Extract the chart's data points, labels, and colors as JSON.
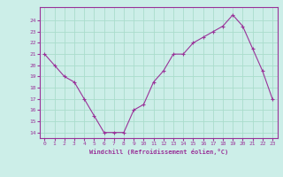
{
  "x": [
    0,
    1,
    2,
    3,
    4,
    5,
    6,
    7,
    8,
    9,
    10,
    11,
    12,
    13,
    14,
    15,
    16,
    17,
    18,
    19,
    20,
    21,
    22,
    23
  ],
  "y": [
    21,
    20,
    19,
    18.5,
    17,
    15.5,
    14,
    14,
    14,
    16,
    16.5,
    18.5,
    19.5,
    21,
    21,
    22,
    22.5,
    23,
    23.5,
    24.5,
    23.5,
    21.5,
    19.5,
    17
  ],
  "line_color": "#993399",
  "marker": "+",
  "bg_color": "#cceee8",
  "grid_color": "#aaddcc",
  "xlabel": "Windchill (Refroidissement éolien,°C)",
  "xlabel_color": "#993399",
  "tick_color": "#993399",
  "spine_color": "#993399",
  "ylim": [
    13.5,
    25.2
  ],
  "xlim": [
    -0.5,
    23.5
  ],
  "yticks": [
    14,
    15,
    16,
    17,
    18,
    19,
    20,
    21,
    22,
    23,
    24
  ],
  "xticks": [
    0,
    1,
    2,
    3,
    4,
    5,
    6,
    7,
    8,
    9,
    10,
    11,
    12,
    13,
    14,
    15,
    16,
    17,
    18,
    19,
    20,
    21,
    22,
    23
  ],
  "xtick_labels": [
    "0",
    "1",
    "2",
    "3",
    "4",
    "5",
    "6",
    "7",
    "8",
    "9",
    "10",
    "11",
    "12",
    "13",
    "14",
    "15",
    "16",
    "17",
    "18",
    "19",
    "20",
    "21",
    "22",
    "23"
  ],
  "ytick_labels": [
    "14",
    "15",
    "16",
    "17",
    "18",
    "19",
    "20",
    "21",
    "22",
    "23",
    "24"
  ]
}
